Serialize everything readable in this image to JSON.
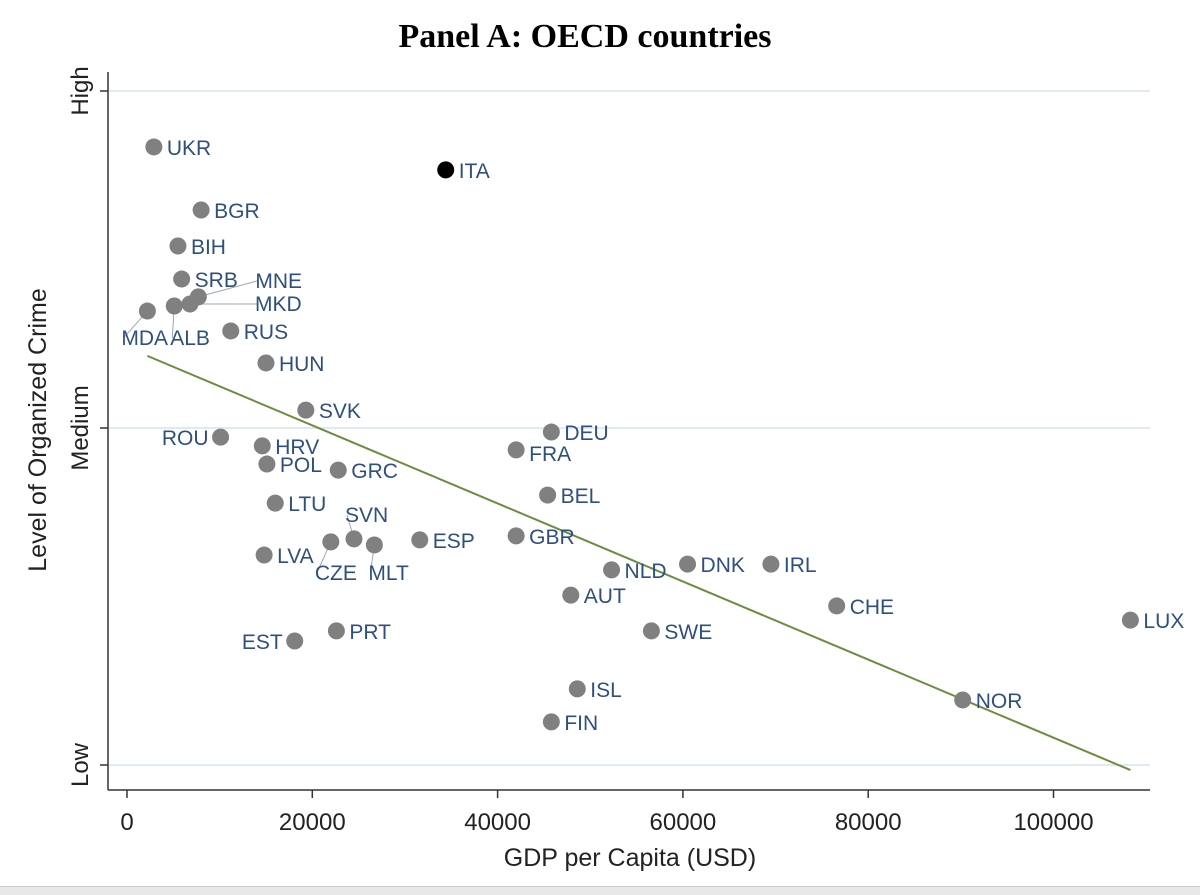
{
  "chart_data": {
    "type": "scatter",
    "title": "Panel A: OECD countries",
    "xlabel": "GDP per Capita (USD)",
    "ylabel": "Level of Organized Crime",
    "xlim": [
      -2000,
      110000
    ],
    "ylim": [
      0.93,
      3.07
    ],
    "xticks": [
      0,
      20000,
      40000,
      60000,
      80000,
      100000
    ],
    "xtick_labels": [
      "0",
      "20000",
      "40000",
      "60000",
      "80000",
      "100000"
    ],
    "yticks": [
      1,
      2,
      3
    ],
    "ytick_labels": [
      "Low",
      "Medium",
      "High"
    ],
    "grid": "horizontal",
    "highlight": "ITA",
    "colors": {
      "point": "#808080",
      "highlight": "#000000",
      "label": "#2f4f7f",
      "highlight_label": "#8b3a3a",
      "trend": "#6b8e3e",
      "grid": "#dfeaf3"
    },
    "points": [
      {
        "label": "UKR",
        "x": 2900,
        "y": 2.834
      },
      {
        "label": "ITA",
        "x": 34400,
        "y": 2.766
      },
      {
        "label": "BGR",
        "x": 8000,
        "y": 2.647
      },
      {
        "label": "BIH",
        "x": 5500,
        "y": 2.54
      },
      {
        "label": "SRB",
        "x": 5900,
        "y": 2.442
      },
      {
        "label": "MNE",
        "x": 7700,
        "y": 2.389
      },
      {
        "label": "MKD",
        "x": 6800,
        "y": 2.368
      },
      {
        "label": "ALB",
        "x": 5100,
        "y": 2.362
      },
      {
        "label": "MDA",
        "x": 2200,
        "y": 2.347
      },
      {
        "label": "RUS",
        "x": 11200,
        "y": 2.288
      },
      {
        "label": "HUN",
        "x": 15000,
        "y": 2.193
      },
      {
        "label": "SVK",
        "x": 19300,
        "y": 2.053
      },
      {
        "label": "ROU",
        "x": 10100,
        "y": 1.973
      },
      {
        "label": "HRV",
        "x": 14600,
        "y": 1.947
      },
      {
        "label": "POL",
        "x": 15100,
        "y": 1.893
      },
      {
        "label": "GRC",
        "x": 22800,
        "y": 1.875
      },
      {
        "label": "LTU",
        "x": 16000,
        "y": 1.777
      },
      {
        "label": "LVA",
        "x": 14800,
        "y": 1.623
      },
      {
        "label": "CZE",
        "x": 22000,
        "y": 1.662
      },
      {
        "label": "SVN",
        "x": 24500,
        "y": 1.671
      },
      {
        "label": "MLT",
        "x": 26700,
        "y": 1.653
      },
      {
        "label": "ESP",
        "x": 31600,
        "y": 1.668
      },
      {
        "label": "EST",
        "x": 18100,
        "y": 1.368
      },
      {
        "label": "PRT",
        "x": 22600,
        "y": 1.398
      },
      {
        "label": "DEU",
        "x": 45800,
        "y": 1.988
      },
      {
        "label": "FRA",
        "x": 42000,
        "y": 1.935
      },
      {
        "label": "BEL",
        "x": 45400,
        "y": 1.801
      },
      {
        "label": "GBR",
        "x": 42000,
        "y": 1.68
      },
      {
        "label": "NLD",
        "x": 52300,
        "y": 1.579
      },
      {
        "label": "AUT",
        "x": 47900,
        "y": 1.504
      },
      {
        "label": "DNK",
        "x": 60500,
        "y": 1.596
      },
      {
        "label": "IRL",
        "x": 69500,
        "y": 1.596
      },
      {
        "label": "SWE",
        "x": 56600,
        "y": 1.398
      },
      {
        "label": "CHE",
        "x": 76600,
        "y": 1.472
      },
      {
        "label": "LUX",
        "x": 108300,
        "y": 1.43
      },
      {
        "label": "ISL",
        "x": 48600,
        "y": 1.226
      },
      {
        "label": "FIN",
        "x": 45800,
        "y": 1.128
      },
      {
        "label": "NOR",
        "x": 90200,
        "y": 1.193
      }
    ],
    "trendline": {
      "x": [
        2200,
        108300
      ],
      "y": [
        2.214,
        0.985
      ]
    }
  }
}
